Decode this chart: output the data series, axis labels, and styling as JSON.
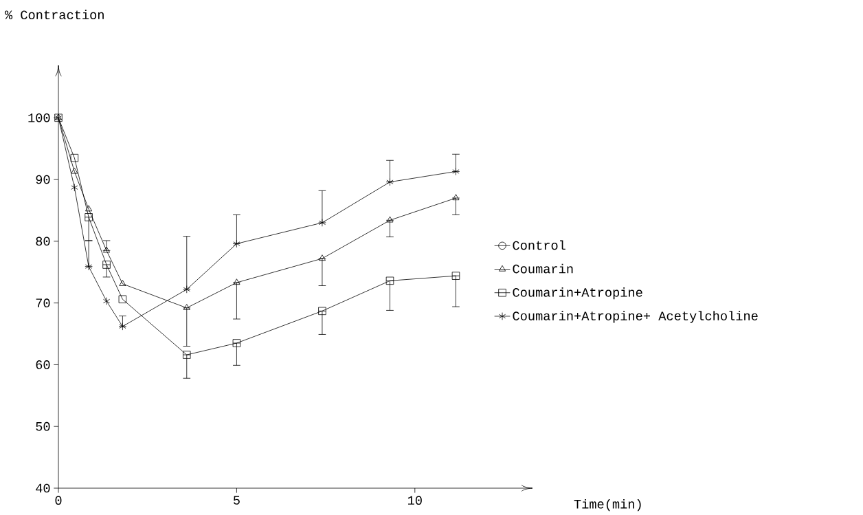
{
  "chart_data": {
    "type": "line",
    "ylabel": "% Contraction",
    "xlabel": "Time(min)",
    "x": [
      0,
      0.45,
      0.85,
      1.35,
      1.8,
      3.6,
      5,
      7.4,
      9.3,
      11.15
    ],
    "xlim": [
      0,
      13.3
    ],
    "ylim": [
      40,
      108.5
    ],
    "xticks": [
      0,
      5,
      10
    ],
    "yticks": [
      40,
      50,
      60,
      70,
      80,
      90,
      100
    ],
    "grid": false,
    "legend": "right",
    "line_style": "solid",
    "series": [
      {
        "name": "Control",
        "color": "#000000",
        "marker": "circle",
        "values": [
          null,
          null,
          null,
          null,
          null,
          null,
          null,
          null,
          null,
          null
        ]
      },
      {
        "name": "Coumarin",
        "color": "#000000",
        "marker": "triangle",
        "values": [
          100,
          91.3,
          85.2,
          78.5,
          73.1,
          69.2,
          73.3,
          77.2,
          83.4,
          87.0
        ],
        "errors": [
          null,
          null,
          null,
          [
            78.5,
            80.1
          ],
          null,
          [
            63.0,
            69.2
          ],
          [
            67.4,
            73.3
          ],
          [
            72.8,
            77.2
          ],
          [
            80.7,
            83.4
          ],
          [
            84.3,
            87.0
          ]
        ]
      },
      {
        "name": "Coumarin+Atropine",
        "color": "#000000",
        "marker": "square",
        "values": [
          100,
          93.5,
          83.9,
          76.2,
          70.6,
          61.6,
          63.5,
          68.7,
          73.6,
          74.4
        ],
        "errors": [
          null,
          null,
          [
            80.1,
            83.9
          ],
          [
            74.2,
            76.2
          ],
          null,
          [
            57.8,
            61.6
          ],
          [
            59.9,
            63.5
          ],
          [
            64.9,
            68.7
          ],
          [
            68.8,
            73.6
          ],
          [
            69.4,
            74.4
          ]
        ]
      },
      {
        "name": "Coumarin+Atropine+ Acetylcholine",
        "color": "#000000",
        "marker": "cross",
        "values": [
          100,
          88.7,
          75.9,
          70.3,
          66.2,
          72.2,
          79.6,
          83.0,
          89.6,
          91.3
        ],
        "errors": [
          null,
          null,
          [
            75.9,
            80.1
          ],
          null,
          [
            66.2,
            67.9
          ],
          [
            72.2,
            80.8
          ],
          [
            79.6,
            84.3
          ],
          [
            83.0,
            88.2
          ],
          [
            89.6,
            93.1
          ],
          [
            91.3,
            94.1
          ]
        ]
      }
    ]
  }
}
